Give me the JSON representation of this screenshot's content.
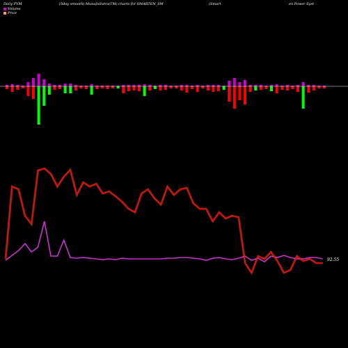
{
  "header": {
    "left": "Daily PVM",
    "mid": "(5day smooth) MunafaSutra(TM) charts for SMARTEN_SM",
    "right1": "(Smart",
    "right2": "en  Power Syst"
  },
  "legend": {
    "volume_label": "Volume",
    "volume_color": "#cc00cc",
    "price_label": "Price",
    "price_color": "#ff9f5f"
  },
  "price_label_text": "92.55",
  "colors": {
    "bar_up": "#00ff00",
    "bar_down": "#ff0000",
    "bar_up_top": "#cc00cc",
    "price_line": "#ff0000",
    "price_glow": "#ff9f5f",
    "volume_line": "#cc33cc"
  },
  "chart_data": {
    "type": "line",
    "title": "(5day smooth) MunafaSutra(TM) charts for SMARTEN_SM",
    "bar_series": [
      {
        "v": 4,
        "d": "down"
      },
      {
        "v": 8,
        "d": "down"
      },
      {
        "v": 5,
        "d": "down"
      },
      {
        "v": 3,
        "d": "down"
      },
      {
        "v": 14,
        "d": "down"
      },
      {
        "v": 18,
        "d": "down"
      },
      {
        "v": 55,
        "d": "up"
      },
      {
        "v": 28,
        "d": "up"
      },
      {
        "v": 12,
        "d": "up"
      },
      {
        "v": 5,
        "d": "down"
      },
      {
        "v": 4,
        "d": "down"
      },
      {
        "v": 10,
        "d": "up"
      },
      {
        "v": 10,
        "d": "up"
      },
      {
        "v": 6,
        "d": "down"
      },
      {
        "v": 3,
        "d": "down"
      },
      {
        "v": 4,
        "d": "down"
      },
      {
        "v": 12,
        "d": "up"
      },
      {
        "v": 4,
        "d": "down"
      },
      {
        "v": 3,
        "d": "down"
      },
      {
        "v": 4,
        "d": "down"
      },
      {
        "v": 3,
        "d": "down"
      },
      {
        "v": 3,
        "d": "up"
      },
      {
        "v": 10,
        "d": "down"
      },
      {
        "v": 7,
        "d": "down"
      },
      {
        "v": 6,
        "d": "down"
      },
      {
        "v": 7,
        "d": "down"
      },
      {
        "v": 14,
        "d": "up"
      },
      {
        "v": 6,
        "d": "down"
      },
      {
        "v": 4,
        "d": "up"
      },
      {
        "v": 6,
        "d": "down"
      },
      {
        "v": 5,
        "d": "down"
      },
      {
        "v": 3,
        "d": "down"
      },
      {
        "v": 3,
        "d": "down"
      },
      {
        "v": 6,
        "d": "down"
      },
      {
        "v": 9,
        "d": "down"
      },
      {
        "v": 4,
        "d": "down"
      },
      {
        "v": 8,
        "d": "down"
      },
      {
        "v": 3,
        "d": "down"
      },
      {
        "v": 6,
        "d": "down"
      },
      {
        "v": 8,
        "d": "down"
      },
      {
        "v": 7,
        "d": "down"
      },
      {
        "v": 5,
        "d": "up"
      },
      {
        "v": 22,
        "d": "down"
      },
      {
        "v": 32,
        "d": "down"
      },
      {
        "v": 20,
        "d": "down"
      },
      {
        "v": 26,
        "d": "down"
      },
      {
        "v": 8,
        "d": "down"
      },
      {
        "v": 6,
        "d": "up"
      },
      {
        "v": 5,
        "d": "down"
      },
      {
        "v": 4,
        "d": "down"
      },
      {
        "v": 7,
        "d": "up"
      },
      {
        "v": 10,
        "d": "down"
      },
      {
        "v": 5,
        "d": "down"
      },
      {
        "v": 6,
        "d": "down"
      },
      {
        "v": 4,
        "d": "down"
      },
      {
        "v": 8,
        "d": "down"
      },
      {
        "v": 32,
        "d": "up"
      },
      {
        "v": 9,
        "d": "down"
      },
      {
        "v": 6,
        "d": "down"
      },
      {
        "v": 3,
        "d": "down"
      },
      {
        "v": 3,
        "d": "down"
      }
    ],
    "bar_top_series": [
      2,
      3,
      2,
      1,
      6,
      12,
      18,
      10,
      4,
      2,
      2,
      4,
      4,
      2,
      1,
      1,
      3,
      1,
      1,
      1,
      1,
      1,
      2,
      2,
      2,
      2,
      3,
      2,
      1,
      2,
      2,
      1,
      1,
      2,
      2,
      1,
      2,
      1,
      2,
      2,
      2,
      1,
      8,
      12,
      6,
      9,
      2,
      2,
      2,
      1,
      2,
      3,
      1,
      2,
      1,
      2,
      6,
      2,
      2,
      1,
      1
    ],
    "price_series": [
      372,
      268,
      272,
      310,
      322,
      245,
      242,
      250,
      268,
      254,
      244,
      280,
      262,
      268,
      264,
      278,
      275,
      282,
      290,
      300,
      305,
      278,
      272,
      285,
      294,
      268,
      280,
      272,
      270,
      292,
      300,
      300,
      318,
      305,
      314,
      310,
      312,
      378,
      392,
      368,
      372,
      362,
      375,
      392,
      388,
      368,
      375,
      372,
      378,
      378
    ],
    "volume_series": [
      374,
      367,
      360,
      350,
      362,
      355,
      318,
      368,
      368,
      345,
      370,
      371,
      370,
      371,
      372,
      373,
      372,
      373,
      371,
      372,
      372,
      372,
      372,
      372,
      372,
      371,
      371,
      370,
      370,
      371,
      372,
      374,
      371,
      370,
      372,
      373,
      371,
      368,
      374,
      371,
      376,
      368,
      370,
      367,
      370,
      372,
      372,
      370,
      370,
      372
    ],
    "series": [
      {
        "name": "Volume",
        "role": "volume"
      },
      {
        "name": "Price",
        "role": "price"
      }
    ]
  }
}
